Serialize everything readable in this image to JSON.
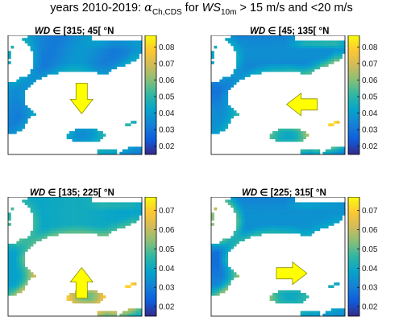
{
  "title": {
    "prefix": "years 2010-2019: ",
    "alpha": "α",
    "alpha_sub": "Ch,CDS",
    "for": " for ",
    "ws": "WS",
    "ws_sub": "10m",
    "suffix": " > 15 m/s and <20 m/s"
  },
  "colors": {
    "colormap": "parula",
    "parula_stops": [
      "#352a87",
      "#0f5cdd",
      "#1481d6",
      "#06a4ca",
      "#2eb7a4",
      "#87bf77",
      "#d1bb59",
      "#fec832",
      "#f9fb0e"
    ],
    "arrow_fill": "#ffff00",
    "arrow_stroke": "#8c8c00"
  },
  "chart_data": [
    {
      "type": "heatmap",
      "panel": "top-left",
      "title_var": "WD",
      "title_op": "∈",
      "title_range": "[315; 45[ °N",
      "colorbar": {
        "ticks": [
          "0.08",
          "0.07",
          "0.06",
          "0.05",
          "0.04",
          "0.03",
          "0.02"
        ],
        "clim": [
          0.015,
          0.087
        ]
      },
      "wind_arrow": "down",
      "shading": "uniform-blue"
    },
    {
      "type": "heatmap",
      "panel": "top-right",
      "title_var": "WD",
      "title_op": "∈",
      "title_range": "[45; 135[ °N",
      "colorbar": {
        "ticks": [
          "0.08",
          "0.07",
          "0.06",
          "0.05",
          "0.04",
          "0.03",
          "0.02"
        ],
        "clim": [
          0.015,
          0.087
        ]
      },
      "wind_arrow": "left",
      "shading": "east-coasts-high"
    },
    {
      "type": "heatmap",
      "panel": "bottom-left",
      "title_var": "WD",
      "title_op": "∈",
      "title_range": "[135; 225[ °N",
      "colorbar": {
        "ticks": [
          "0.07",
          "0.06",
          "0.05",
          "0.04",
          "0.03",
          "0.02"
        ],
        "clim": [
          0.015,
          0.077
        ]
      },
      "wind_arrow": "up",
      "shading": "south-coasts-high"
    },
    {
      "type": "heatmap",
      "panel": "bottom-right",
      "title_var": "WD",
      "title_op": "∈",
      "title_range": "[225; 315[ °N",
      "colorbar": {
        "ticks": [
          "0.07",
          "0.06",
          "0.05",
          "0.04",
          "0.03",
          "0.02"
        ],
        "clim": [
          0.015,
          0.077
        ]
      },
      "wind_arrow": "right",
      "shading": "west-coasts-high"
    }
  ]
}
